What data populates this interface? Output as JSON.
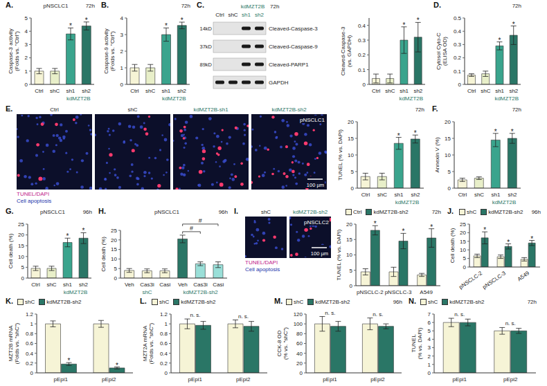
{
  "chart_data": [
    {
      "panel": "A.",
      "type": "bar",
      "title": "pNSCLC1",
      "time": "72h",
      "ylabel": "Caspase-3 activity (Folds vs. \"Ctrl\")",
      "categories": [
        "Ctrl",
        "shC",
        "sh1",
        "sh2"
      ],
      "category_groups": [
        {
          "label": "kdMZT2B",
          "from": 2,
          "to": 3
        }
      ],
      "values": [
        1,
        1,
        3.8,
        4.4
      ],
      "errors": [
        0.2,
        0.2,
        0.45,
        0.3
      ],
      "marks": [
        null,
        null,
        "*",
        "*"
      ],
      "colors": [
        "#f6f4d6",
        "#e8efc9",
        "#3aa48d",
        "#2a7666"
      ],
      "ylim": [
        0,
        5
      ],
      "yticks": [
        0,
        1,
        2,
        3,
        4,
        5
      ]
    },
    {
      "panel": "B.",
      "type": "bar",
      "time": "72h",
      "ylabel": "Caspase-9 activity (Folds vs. \"Ctrl\")",
      "categories": [
        "Ctrl",
        "shC",
        "sh1",
        "sh2"
      ],
      "category_groups": [
        {
          "label": "kdMZT2B",
          "from": 2,
          "to": 3
        }
      ],
      "values": [
        1,
        1,
        3,
        3.55
      ],
      "errors": [
        0.2,
        0.2,
        0.4,
        0.2
      ],
      "marks": [
        null,
        null,
        "*",
        "*"
      ],
      "colors": [
        "#f6f4d6",
        "#e8efc9",
        "#3aa48d",
        "#2a7666"
      ],
      "ylim": [
        0,
        4
      ],
      "yticks": [
        0,
        1,
        2,
        3,
        4
      ]
    },
    {
      "type": "bar",
      "ylabel": "Cleaved-Caspase-3 (vs. GAPDH)",
      "categories": [
        "Ctrl",
        "shC",
        "sh1",
        "sh2"
      ],
      "category_groups": [
        {
          "label": "kdMZT2B",
          "from": 2,
          "to": 3
        }
      ],
      "values": [
        0.04,
        0.04,
        0.3,
        0.32
      ],
      "errors": [
        0.03,
        0.03,
        0.09,
        0.1
      ],
      "marks": [
        null,
        null,
        "*",
        "*"
      ],
      "colors": [
        "#f6f4d6",
        "#e8efc9",
        "#3aa48d",
        "#2a7666"
      ],
      "ylim": [
        0,
        0.45
      ],
      "yticks": [
        0,
        0.1,
        0.2,
        0.3,
        0.4
      ]
    },
    {
      "panel": "D.",
      "type": "bar",
      "time": "72h",
      "ylabel": "Cytosol Cyto-C (ELISA OD)",
      "categories": [
        "Ctrl",
        "shC",
        "sh1",
        "sh2"
      ],
      "category_groups": [
        {
          "label": "kdMZT2B",
          "from": 2,
          "to": 3
        }
      ],
      "values": [
        0.07,
        0.08,
        0.29,
        0.37
      ],
      "errors": [
        0.01,
        0.02,
        0.03,
        0.07
      ],
      "marks": [
        null,
        null,
        "*",
        "*"
      ],
      "colors": [
        "#f6f4d6",
        "#e8efc9",
        "#3aa48d",
        "#2a7666"
      ],
      "ylim": [
        0,
        0.5
      ],
      "yticks": [
        0,
        0.1,
        0.2,
        0.3,
        0.4,
        0.5
      ]
    },
    {
      "type": "bar",
      "time": "72h",
      "ylabel": "TUNEL (% vs. DAPI)",
      "categories": [
        "Ctrl",
        "shC",
        "sh1",
        "sh2"
      ],
      "category_groups": [
        {
          "label": "kdMZT2B",
          "from": 2,
          "to": 3
        }
      ],
      "values": [
        3.5,
        3.5,
        13.5,
        14.8
      ],
      "errors": [
        1,
        1,
        1.8,
        1.2
      ],
      "marks": [
        null,
        null,
        "*",
        "*"
      ],
      "colors": [
        "#f6f4d6",
        "#e8efc9",
        "#3aa48d",
        "#2a7666"
      ],
      "ylim": [
        0,
        20
      ],
      "yticks": [
        0,
        5,
        10,
        15,
        20
      ]
    },
    {
      "panel": "F.",
      "type": "bar",
      "time": "72h",
      "ylabel": "Annexin V (%)",
      "categories": [
        "Ctrl",
        "shC",
        "sh1",
        "sh2"
      ],
      "category_groups": [
        {
          "label": "kdMZT2B",
          "from": 2,
          "to": 3
        }
      ],
      "values": [
        2.5,
        3,
        14.5,
        15
      ],
      "errors": [
        0.5,
        0.4,
        2,
        1.5
      ],
      "marks": [
        null,
        null,
        "*",
        "*"
      ],
      "colors": [
        "#f6f4d6",
        "#e8efc9",
        "#3aa48d",
        "#2a7666"
      ],
      "ylim": [
        0,
        20
      ],
      "yticks": [
        0,
        5,
        10,
        15,
        20
      ]
    },
    {
      "panel": "G.",
      "type": "bar",
      "title": "pNSCLC1",
      "time": "96h",
      "ylabel": "Cell death (%)",
      "categories": [
        "Ctrl",
        "shC",
        "sh1",
        "sh2"
      ],
      "category_groups": [
        {
          "label": "kdMZT2B",
          "from": 2,
          "to": 3
        }
      ],
      "values": [
        4.5,
        4.5,
        16.5,
        18.5
      ],
      "errors": [
        1,
        1,
        2,
        2.5
      ],
      "marks": [
        null,
        null,
        "*",
        "*"
      ],
      "colors": [
        "#f6f4d6",
        "#e8efc9",
        "#3aa48d",
        "#2a7666"
      ],
      "ylim": [
        0,
        25
      ],
      "yticks": [
        0,
        5,
        10,
        15,
        20,
        25
      ]
    },
    {
      "panel": "H.",
      "type": "bar",
      "title": "pNSCLC1",
      "time": "96h",
      "ylabel": "Cell death (%)",
      "categories": [
        "Veh",
        "Cas3i",
        "Casi",
        "Veh",
        "Cas3i",
        "Casi"
      ],
      "category_groups": [
        {
          "label": "shC",
          "from": 0,
          "to": 2
        },
        {
          "label": "kdMZT2B-sh2",
          "from": 3,
          "to": 5
        }
      ],
      "values": [
        4,
        3.8,
        3.8,
        20.5,
        7.5,
        7
      ],
      "errors": [
        1,
        1,
        1,
        2,
        1,
        1.5
      ],
      "colors": [
        "#f6f4d6",
        "#f6f4d6",
        "#f6f4d6",
        "#2a7666",
        "#9adfd8",
        "#9adfd8"
      ],
      "brackets": [
        {
          "from": 3,
          "to": 4,
          "label": "#"
        },
        {
          "from": 3,
          "to": 5,
          "label": "#"
        }
      ],
      "ylim": [
        0,
        25
      ],
      "yticks": [
        0,
        5,
        10,
        15,
        20,
        25
      ]
    },
    {
      "type": "bar",
      "time": "72h",
      "legend": "top",
      "ylabel": "TUNEL (% vs. DAPI)",
      "categories": [
        "pNSCLC-2",
        "pNSCLC-3",
        "A549"
      ],
      "series": [
        {
          "name": "Ctrl",
          "color": "#f6f4d6",
          "values": [
            4.5,
            4.5,
            3.5
          ],
          "errors": [
            1,
            1.5,
            0.5
          ]
        },
        {
          "name": "kdMZT2B-sh2",
          "color": "#2a7666",
          "values": [
            18,
            14.5,
            15.5
          ],
          "errors": [
            1.5,
            2.5,
            3
          ],
          "marks": [
            "*",
            "*",
            "*"
          ]
        }
      ],
      "ylim": [
        0,
        20
      ],
      "yticks": [
        0,
        5,
        10,
        15,
        20
      ]
    },
    {
      "panel": "J.",
      "type": "bar",
      "time": "96h",
      "legend": "top",
      "ylabel": "Cell death (%)",
      "categories": [
        "pNSCLC-2",
        "pNSCLC-3",
        "A549"
      ],
      "series": [
        {
          "name": "shC",
          "color": "#f6f4d6",
          "values": [
            6.5,
            6,
            4.5
          ],
          "errors": [
            1,
            1,
            1
          ]
        },
        {
          "name": "kdMZT2B-sh2",
          "color": "#2a7666",
          "values": [
            17,
            12,
            14
          ],
          "errors": [
            3.5,
            1.5,
            1.5
          ],
          "marks": [
            "*",
            "*",
            "*"
          ]
        }
      ],
      "ylim": [
        0,
        25
      ],
      "yticks": [
        0,
        5,
        10,
        15,
        20,
        25
      ]
    },
    {
      "panel": "K.",
      "type": "bar",
      "legend": "top",
      "ylabel": "MZT2B mRNA (Folds vs. \"shC\")",
      "categories": [
        "pEpi1",
        "pEpi2"
      ],
      "series": [
        {
          "name": "shC",
          "color": "#f6f4d6",
          "values": [
            1,
            1
          ],
          "errors": [
            0.06,
            0.07
          ]
        },
        {
          "name": "kdMZT2B-sh2",
          "color": "#2a7666",
          "values": [
            0.18,
            0.1
          ],
          "errors": [
            0.03,
            0.02
          ],
          "marks": [
            "*",
            "*"
          ]
        }
      ],
      "ylim": [
        0,
        1.2
      ],
      "yticks": [
        0,
        0.2,
        0.4,
        0.6,
        0.8,
        1,
        1.2
      ]
    },
    {
      "panel": "L.",
      "type": "bar",
      "legend": "top",
      "ylabel": "MZT2A mRNA (Folds vs. \"shC\")",
      "categories": [
        "pEpi1",
        "pEpi2"
      ],
      "series": [
        {
          "name": "shC",
          "color": "#f6f4d6",
          "values": [
            1,
            1
          ],
          "errors": [
            0.1,
            0.08
          ]
        },
        {
          "name": "kdMZT2B-sh2",
          "color": "#2a7666",
          "values": [
            0.97,
            0.95
          ],
          "errors": [
            0.08,
            0.1
          ]
        }
      ],
      "group_marks": [
        "n. s.",
        "n. s."
      ],
      "ylim": [
        0,
        1.2
      ],
      "yticks": [
        0,
        0.2,
        0.4,
        0.6,
        0.8,
        1,
        1.2
      ]
    },
    {
      "panel": "M.",
      "type": "bar",
      "time": "96h",
      "legend": "top",
      "ylabel": "CCK-8 OD (% vs. \"shC\")",
      "categories": [
        "pEpi1",
        "pEpi2"
      ],
      "series": [
        {
          "name": "shC",
          "color": "#f6f4d6",
          "values": [
            100,
            100
          ],
          "errors": [
            15,
            12
          ]
        },
        {
          "name": "kdMZT2B-sh2",
          "color": "#2a7666",
          "values": [
            95,
            95
          ],
          "errors": [
            10,
            5
          ]
        }
      ],
      "group_marks": [
        "n. s.",
        "n. s."
      ],
      "ylim": [
        0,
        120
      ],
      "yticks": [
        0,
        20,
        40,
        60,
        80,
        100,
        120
      ]
    },
    {
      "panel": "N.",
      "type": "bar",
      "time": "72h",
      "legend": "top",
      "ylabel": "TUNEL (% vs. DAPI)",
      "categories": [
        "pEpi1",
        "pEpi2"
      ],
      "series": [
        {
          "name": "shC",
          "color": "#f6f4d6",
          "values": [
            6,
            5
          ],
          "errors": [
            0.5,
            0.4
          ]
        },
        {
          "name": "kdMZT2B-sh2",
          "color": "#2a7666",
          "values": [
            6,
            5
          ],
          "errors": [
            0.4,
            0.3
          ]
        }
      ],
      "group_marks": [
        "n. s.",
        "n. s."
      ],
      "ylim": [
        0,
        7
      ],
      "yticks": [
        0,
        1,
        2,
        3,
        4,
        5,
        6,
        7
      ]
    }
  ],
  "blots": [
    {
      "panel": "C.",
      "time": "72h",
      "lanes": [
        "Ctrl",
        "shC",
        "sh1",
        "sh2"
      ],
      "lane_group": {
        "label": "kdMZT2B",
        "from": 2,
        "to": 3
      },
      "rows": [
        {
          "label": "Cleaved-Caspase-3",
          "size": "14kD",
          "present": [
            false,
            false,
            true,
            true
          ]
        },
        {
          "label": "Cleaved-Caspase-9",
          "size": "37kD",
          "present": [
            false,
            false,
            true,
            true
          ]
        },
        {
          "label": "Cleaved-PARP1",
          "size": "89kD",
          "present": [
            false,
            false,
            true,
            true
          ]
        },
        {
          "label": "GAPDH",
          "present": [
            true,
            true,
            true,
            true
          ]
        }
      ]
    }
  ],
  "images": [
    {
      "panel": "E.",
      "labels": [
        "Ctrl",
        "shC",
        "kdMZT2B-sh1",
        "kdMZT2B-sh2"
      ],
      "cell": "pNSCLC1",
      "scale": "100 µm",
      "stain": "TUNEL/DAPI",
      "caption": "Cell apoptosis"
    },
    {
      "panel": "I.",
      "labels": [
        "shC",
        "kdMZT2B-sh2"
      ],
      "cell": "pNSCLC2",
      "scale": "100 µm",
      "stain": "TUNEL/DAPI",
      "caption": "Cell apoptosis"
    }
  ]
}
